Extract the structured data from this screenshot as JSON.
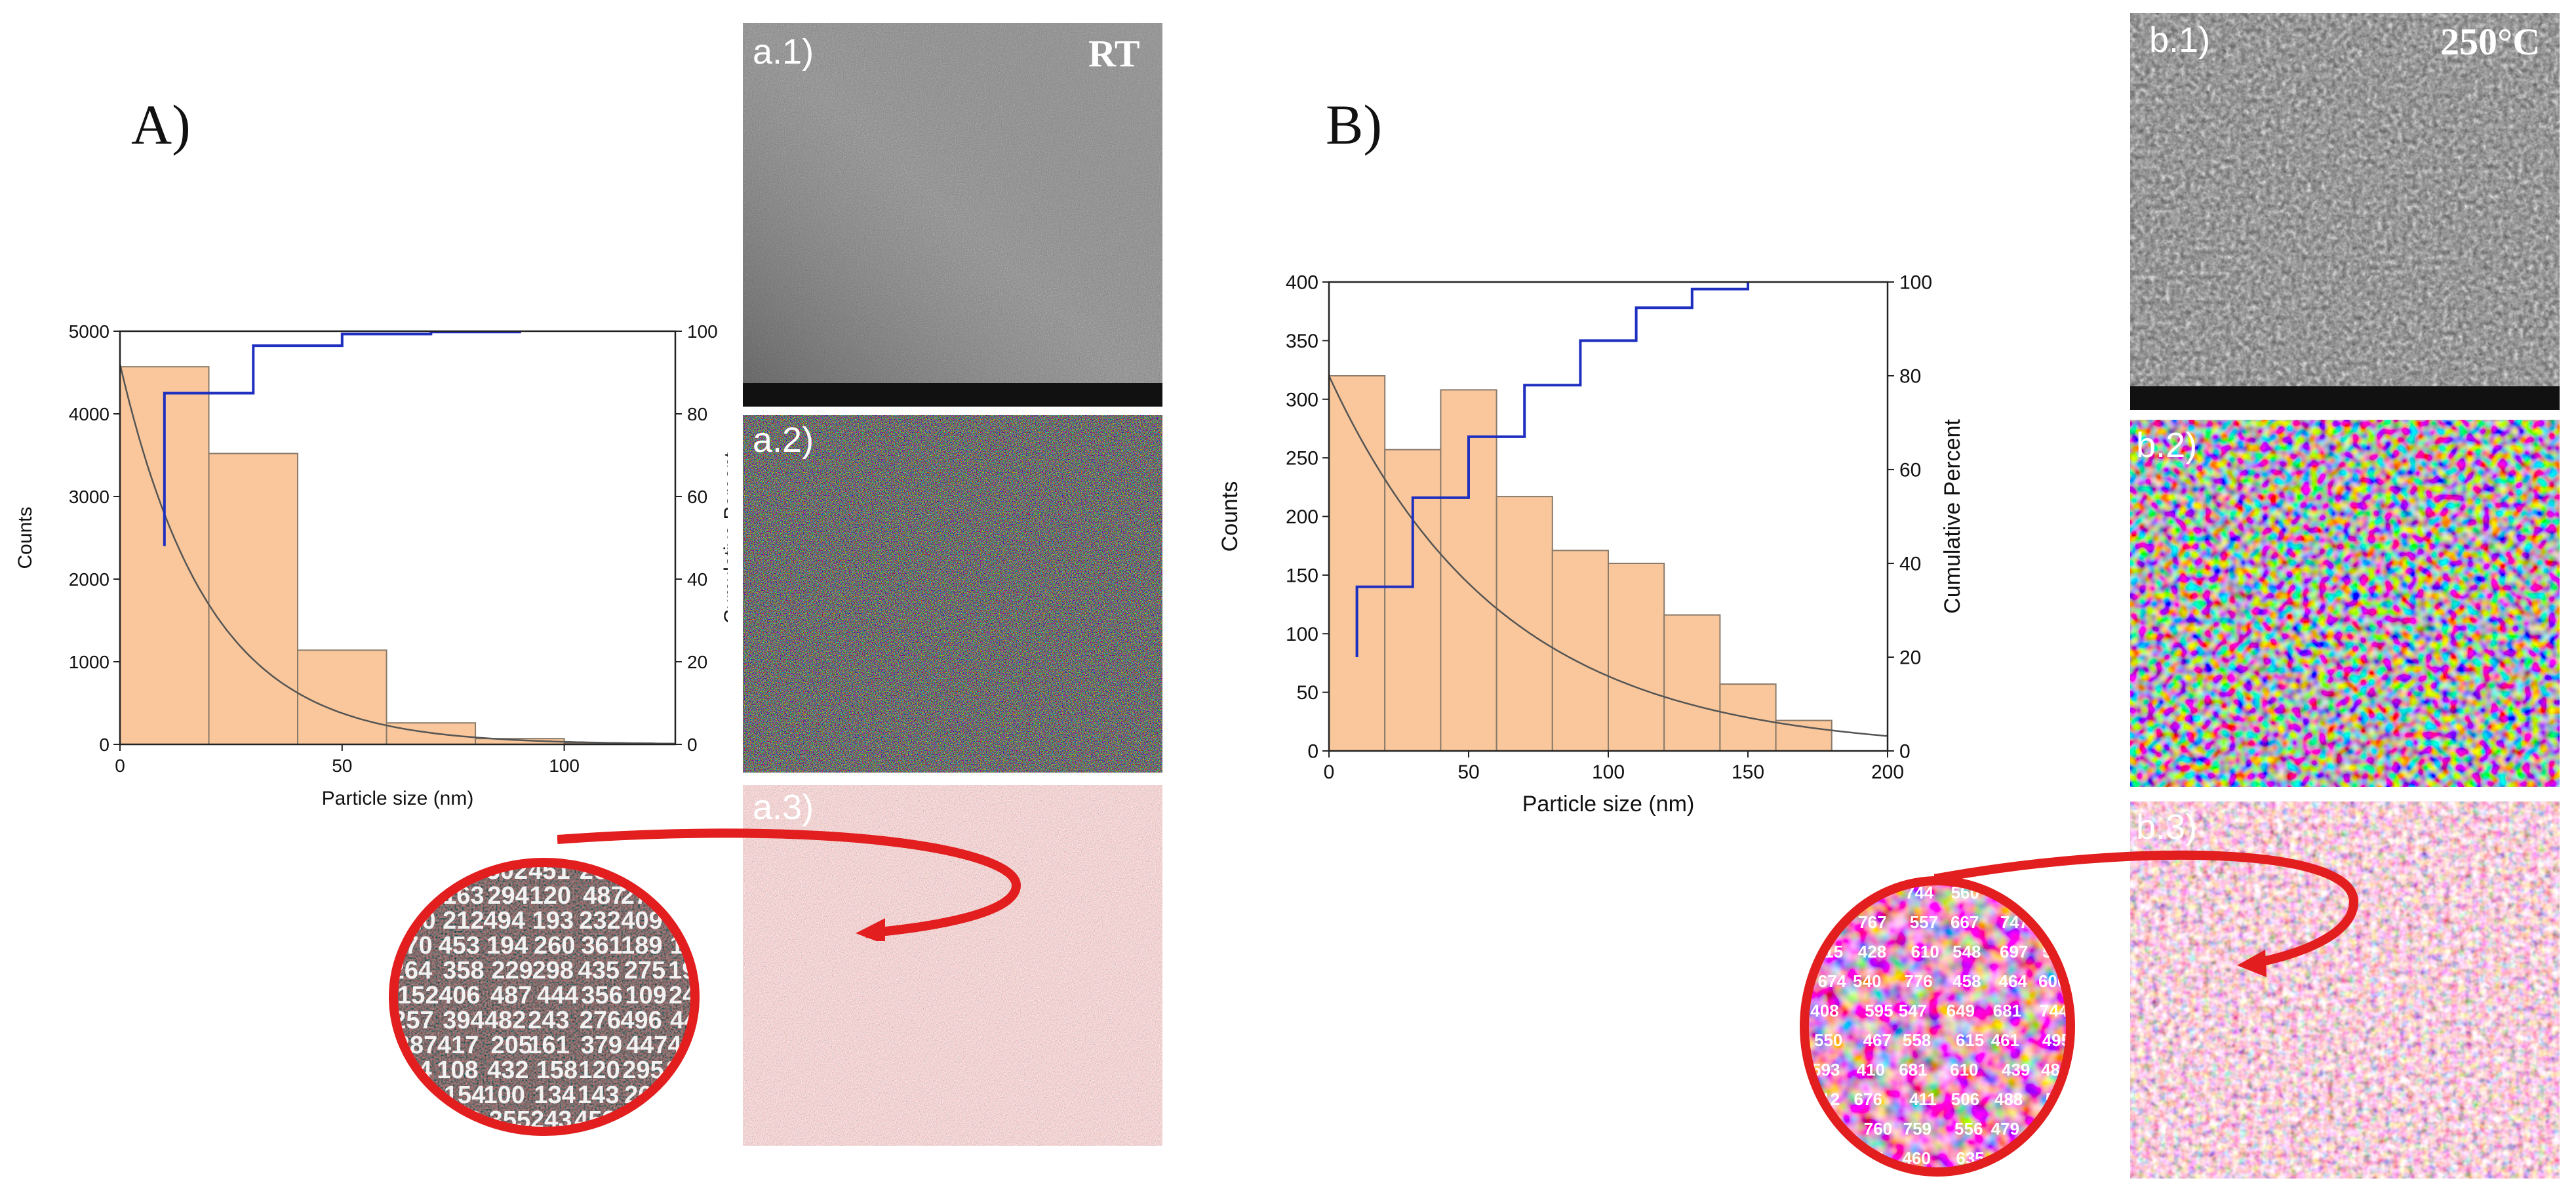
{
  "panels": {
    "A": {
      "letter": "A)",
      "label_1": "a.1)",
      "label_2": "a.2)",
      "label_3": "a.3)",
      "temperature": "RT"
    },
    "B": {
      "letter": "B)",
      "label_1": "b.1)",
      "label_2": "b.2)",
      "label_3": "b.3)",
      "temperature": "250°C"
    }
  },
  "colors": {
    "bar_fill": "#f9c79b",
    "bar_edge": "#8a7a6a",
    "cumulative_line": "#1f2fbf",
    "fit_curve": "#555555",
    "arrow": "#e21e1e",
    "axis": "#222222"
  },
  "chart_data": [
    {
      "id": "A",
      "type": "bar",
      "xlabel": "Particle size (nm)",
      "ylabel": "Counts",
      "y2label": "Cumulative Percent",
      "xlim": [
        0,
        125
      ],
      "ylim": [
        0,
        5000
      ],
      "y2lim": [
        0,
        100
      ],
      "xticks": [
        0,
        50,
        100
      ],
      "yticks": [
        0,
        1000,
        2000,
        3000,
        4000,
        5000
      ],
      "y2ticks": [
        0,
        20,
        40,
        60,
        80,
        100
      ],
      "bins": [
        {
          "start": 0,
          "end": 20,
          "count": 4570
        },
        {
          "start": 20,
          "end": 40,
          "count": 3520
        },
        {
          "start": 40,
          "end": 60,
          "count": 1140
        },
        {
          "start": 60,
          "end": 80,
          "count": 260
        },
        {
          "start": 80,
          "end": 100,
          "count": 70
        },
        {
          "start": 100,
          "end": 120,
          "count": 15
        }
      ],
      "cumulative_percent": [
        {
          "x": 10,
          "y": 48
        },
        {
          "x": 10,
          "y": 85
        },
        {
          "x": 30,
          "y": 85
        },
        {
          "x": 30,
          "y": 96.5
        },
        {
          "x": 50,
          "y": 96.5
        },
        {
          "x": 50,
          "y": 99.3
        },
        {
          "x": 70,
          "y": 99.3
        },
        {
          "x": 70,
          "y": 99.8
        },
        {
          "x": 90,
          "y": 99.8
        },
        {
          "x": 90,
          "y": 100
        }
      ],
      "fit": {
        "model": "exponential decay",
        "y0": 4600,
        "tau": 20,
        "x_end": 125
      }
    },
    {
      "id": "B",
      "type": "bar",
      "xlabel": "Particle size (nm)",
      "ylabel": "Counts",
      "y2label": "Cumulative Percent",
      "xlim": [
        0,
        200
      ],
      "ylim": [
        0,
        400
      ],
      "y2lim": [
        0,
        100
      ],
      "xticks": [
        0,
        50,
        100,
        150,
        200
      ],
      "yticks": [
        0,
        50,
        100,
        150,
        200,
        250,
        300,
        350,
        400
      ],
      "y2ticks": [
        0,
        20,
        40,
        60,
        80,
        100
      ],
      "bins": [
        {
          "start": 0,
          "end": 20,
          "count": 320
        },
        {
          "start": 20,
          "end": 40,
          "count": 257
        },
        {
          "start": 40,
          "end": 60,
          "count": 308
        },
        {
          "start": 60,
          "end": 80,
          "count": 217
        },
        {
          "start": 80,
          "end": 100,
          "count": 171
        },
        {
          "start": 100,
          "end": 120,
          "count": 160
        },
        {
          "start": 120,
          "end": 140,
          "count": 116
        },
        {
          "start": 140,
          "end": 160,
          "count": 57
        },
        {
          "start": 160,
          "end": 180,
          "count": 26
        }
      ],
      "cumulative_percent": [
        {
          "x": 10,
          "y": 20
        },
        {
          "x": 10,
          "y": 35
        },
        {
          "x": 30,
          "y": 35
        },
        {
          "x": 30,
          "y": 54
        },
        {
          "x": 50,
          "y": 54
        },
        {
          "x": 50,
          "y": 67
        },
        {
          "x": 60,
          "y": 67
        },
        {
          "x": 70,
          "y": 67
        },
        {
          "x": 70,
          "y": 78
        },
        {
          "x": 90,
          "y": 78
        },
        {
          "x": 90,
          "y": 87.5
        },
        {
          "x": 110,
          "y": 87.5
        },
        {
          "x": 110,
          "y": 94.5
        },
        {
          "x": 130,
          "y": 94.5
        },
        {
          "x": 130,
          "y": 98.5
        },
        {
          "x": 150,
          "y": 98.5
        },
        {
          "x": 150,
          "y": 100
        }
      ],
      "fit": {
        "model": "exponential decay",
        "y0": 320,
        "tau": 62,
        "x_end": 200
      }
    }
  ]
}
